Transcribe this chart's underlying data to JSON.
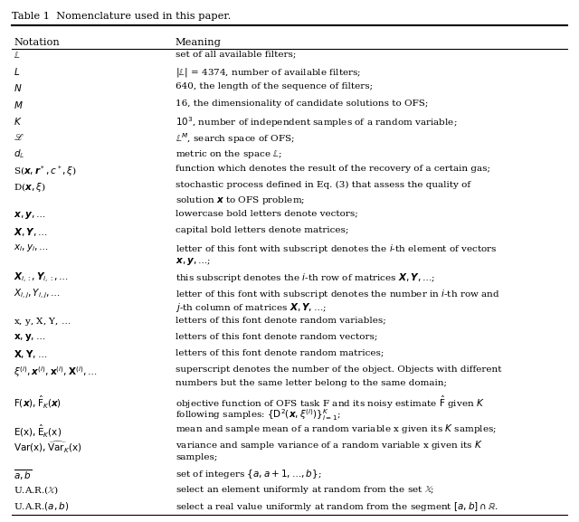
{
  "title": "Table 1  Nomenclature used in this paper.",
  "col1_header": "Notation",
  "col2_header": "Meaning",
  "rows": [
    [
      "$\\mathbb{L}$",
      "set of all available filters;"
    ],
    [
      "$L$",
      "$|\\mathbb{L}|$ = 4374, number of available filters;"
    ],
    [
      "$N$",
      "640, the length of the sequence of filters;"
    ],
    [
      "$M$",
      "16, the dimensionality of candidate solutions to OFS;"
    ],
    [
      "$K$",
      "$10^3$, number of independent samples of a random variable;"
    ],
    [
      "$\\mathscr{L}$",
      "$\\mathbb{L}^M$, search space of OFS;"
    ],
    [
      "$d_\\mathbb{L}$",
      "metric on the space $\\mathbb{L}$;"
    ],
    [
      "S($\\boldsymbol{x}, \\boldsymbol{r}^*, c^*, \\xi$)",
      "function which denotes the result of the recovery of a certain gas;"
    ],
    [
      "D($\\boldsymbol{x}, \\xi$)",
      "stochastic process defined in Eq. (3) that assess the quality of\nsolution $\\boldsymbol{x}$ to OFS problem;"
    ],
    [
      "$\\boldsymbol{x}, \\boldsymbol{y}, \\ldots$",
      "lowercase bold letters denote vectors;"
    ],
    [
      "$\\boldsymbol{X}, \\boldsymbol{Y}, \\ldots$",
      "capital bold letters denote matrices;"
    ],
    [
      "$x_i, y_i, \\ldots$",
      "letter of this font with subscript denotes the $i$-th element of vectors\n$\\boldsymbol{x}, \\boldsymbol{y}, \\ldots$;"
    ],
    [
      "$\\boldsymbol{X}_{i,:}, \\boldsymbol{Y}_{i,:}, \\ldots$",
      "this subscript denotes the $i$-th row of matrices $\\boldsymbol{X}, \\boldsymbol{Y}, \\ldots$;"
    ],
    [
      "$X_{i,j}, Y_{i,j}, \\ldots$",
      "letter of this font with subscript denotes the number in $i$-th row and\n$j$-th column of matrices $\\boldsymbol{X}, \\boldsymbol{Y}, \\ldots$;"
    ],
    [
      "x, y, X, Y, $\\ldots$",
      "letters of this font denote random variables;"
    ],
    [
      "$\\mathbf{x}, \\mathbf{y}, \\ldots$",
      "letters of this font denote random vectors;"
    ],
    [
      "$\\mathbf{X}, \\mathbf{Y}, \\ldots$",
      "letters of this font denote random matrices;"
    ],
    [
      "$\\xi^{(i)}, \\boldsymbol{x}^{(i)}, \\mathbf{x}^{(i)}, \\mathbf{X}^{(i)}, \\ldots$",
      "superscript denotes the number of the object. Objects with different\nnumbers but the same letter belong to the same domain;"
    ],
    [
      "$\\text{F}(\\boldsymbol{x}), \\hat{\\text{F}}_K(\\boldsymbol{x})$",
      "objective function of OFS task F and its noisy estimate $\\hat{\\text{F}}$ given $K$\nfollowing samples: $\\{\\text{D}^2(\\boldsymbol{x}, \\xi^{(i)})\\}_{i=1}^K$;"
    ],
    [
      "$\\text{E}(\\text{x}), \\hat{\\text{E}}_K(\\text{x})$",
      "mean and sample mean of a random variable x given its $K$ samples;"
    ],
    [
      "$\\text{Var}(\\text{x}), \\widehat{\\text{Var}}_K(\\text{x})$",
      "variance and sample variance of a random variable x given its $K$\nsamples;"
    ],
    [
      "$\\overline{a, b}$",
      "set of integers $\\{a, a+1, \\ldots, b\\}$;"
    ],
    [
      "U.A.R.($\\mathbb{X}$)",
      "select an element uniformly at random from the set $\\mathbb{X}$;"
    ],
    [
      "U.A.R.$(a, b)$",
      "select a real value uniformly at random from the segment $[a, b] \\cap \\mathbb{R}$."
    ]
  ],
  "fig_bg": "#ffffff",
  "text_color": "#000000"
}
